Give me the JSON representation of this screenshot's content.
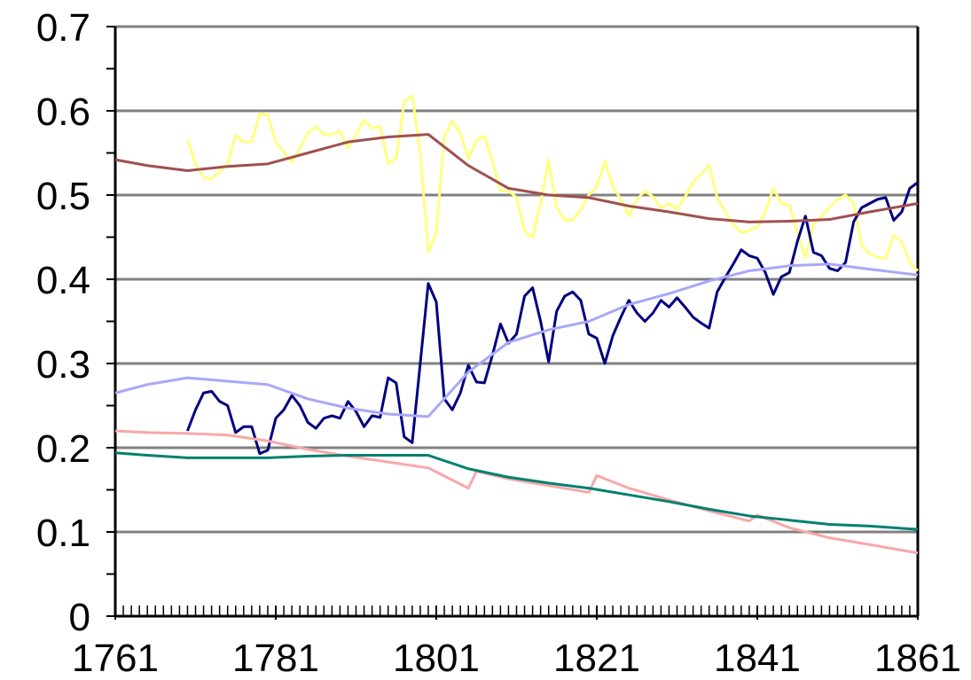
{
  "chart_data": {
    "type": "line",
    "xlim": [
      1761,
      1861
    ],
    "xticks": [
      1761,
      1781,
      1801,
      1821,
      1841,
      1861
    ],
    "ylim": [
      0,
      0.7
    ],
    "yticks": [
      0,
      0.1,
      0.2,
      0.3,
      0.4,
      0.5,
      0.6,
      0.7
    ],
    "grid": true,
    "series": [
      {
        "color": "#ffff80",
        "x": [
          1770,
          1771,
          1772,
          1773,
          1774,
          1775,
          1776,
          1777,
          1778,
          1779,
          1780,
          1781,
          1782,
          1783,
          1784,
          1785,
          1786,
          1787,
          1788,
          1789,
          1790,
          1791,
          1792,
          1793,
          1794,
          1795,
          1796,
          1797,
          1798,
          1799,
          1800,
          1801,
          1802,
          1803,
          1804,
          1805,
          1806,
          1807,
          1808,
          1809,
          1810,
          1811,
          1812,
          1813,
          1814,
          1815,
          1816,
          1817,
          1818,
          1819,
          1820,
          1821,
          1822,
          1823,
          1824,
          1825,
          1826,
          1827,
          1828,
          1829,
          1830,
          1831,
          1832,
          1833,
          1834,
          1835,
          1836,
          1837,
          1838,
          1839,
          1840,
          1841,
          1842,
          1843,
          1844,
          1845,
          1846,
          1847,
          1848,
          1849,
          1850,
          1851,
          1852,
          1853,
          1854,
          1855,
          1856,
          1857,
          1858,
          1859,
          1860,
          1861
        ],
        "values": [
          0.566,
          0.537,
          0.521,
          0.519,
          0.528,
          0.537,
          0.571,
          0.563,
          0.563,
          0.597,
          0.595,
          0.563,
          0.551,
          0.539,
          0.555,
          0.574,
          0.581,
          0.572,
          0.572,
          0.576,
          0.556,
          0.572,
          0.589,
          0.579,
          0.582,
          0.537,
          0.544,
          0.611,
          0.618,
          0.55,
          0.432,
          0.455,
          0.57,
          0.588,
          0.573,
          0.543,
          0.565,
          0.57,
          0.54,
          0.505,
          0.505,
          0.497,
          0.457,
          0.45,
          0.49,
          0.542,
          0.485,
          0.47,
          0.47,
          0.483,
          0.5,
          0.51,
          0.54,
          0.51,
          0.495,
          0.475,
          0.495,
          0.505,
          0.498,
          0.485,
          0.49,
          0.483,
          0.498,
          0.515,
          0.525,
          0.535,
          0.497,
          0.48,
          0.465,
          0.455,
          0.458,
          0.462,
          0.48,
          0.508,
          0.49,
          0.488,
          0.455,
          0.425,
          0.465,
          0.475,
          0.485,
          0.495,
          0.5,
          0.49,
          0.44,
          0.43,
          0.426,
          0.425,
          0.452,
          0.445,
          0.42,
          0.41
        ]
      },
      {
        "color": "#000080",
        "x": [
          1770,
          1771,
          1772,
          1773,
          1774,
          1775,
          1776,
          1777,
          1778,
          1779,
          1780,
          1781,
          1782,
          1783,
          1784,
          1785,
          1786,
          1787,
          1788,
          1789,
          1790,
          1791,
          1792,
          1793,
          1794,
          1795,
          1796,
          1797,
          1798,
          1799,
          1800,
          1801,
          1802,
          1803,
          1804,
          1805,
          1806,
          1807,
          1808,
          1809,
          1810,
          1811,
          1812,
          1813,
          1814,
          1815,
          1816,
          1817,
          1818,
          1819,
          1820,
          1821,
          1822,
          1823,
          1824,
          1825,
          1826,
          1827,
          1828,
          1829,
          1830,
          1831,
          1832,
          1833,
          1834,
          1835,
          1836,
          1837,
          1838,
          1839,
          1840,
          1841,
          1842,
          1843,
          1844,
          1845,
          1846,
          1847,
          1848,
          1849,
          1850,
          1851,
          1852,
          1853,
          1854,
          1855,
          1856,
          1857,
          1858,
          1859,
          1860,
          1861
        ],
        "values": [
          0.22,
          0.245,
          0.265,
          0.267,
          0.255,
          0.25,
          0.218,
          0.225,
          0.225,
          0.193,
          0.197,
          0.235,
          0.245,
          0.262,
          0.25,
          0.23,
          0.223,
          0.235,
          0.238,
          0.235,
          0.255,
          0.243,
          0.225,
          0.238,
          0.236,
          0.283,
          0.277,
          0.213,
          0.206,
          0.3,
          0.395,
          0.373,
          0.258,
          0.245,
          0.265,
          0.298,
          0.278,
          0.277,
          0.31,
          0.347,
          0.324,
          0.335,
          0.38,
          0.39,
          0.35,
          0.302,
          0.362,
          0.38,
          0.385,
          0.375,
          0.335,
          0.33,
          0.3,
          0.333,
          0.355,
          0.375,
          0.36,
          0.35,
          0.36,
          0.375,
          0.367,
          0.378,
          0.367,
          0.355,
          0.348,
          0.342,
          0.385,
          0.402,
          0.418,
          0.435,
          0.428,
          0.425,
          0.408,
          0.382,
          0.403,
          0.408,
          0.445,
          0.475,
          0.432,
          0.428,
          0.413,
          0.41,
          0.42,
          0.468,
          0.485,
          0.49,
          0.495,
          0.497,
          0.47,
          0.48,
          0.508,
          0.515
        ]
      },
      {
        "color": "#a0504f",
        "x": [
          1761,
          1765,
          1770,
          1775,
          1780,
          1785,
          1790,
          1795,
          1800,
          1805,
          1810,
          1815,
          1820,
          1825,
          1830,
          1835,
          1840,
          1845,
          1850,
          1855,
          1861
        ],
        "values": [
          0.542,
          0.535,
          0.529,
          0.534,
          0.537,
          0.55,
          0.563,
          0.569,
          0.572,
          0.535,
          0.508,
          0.5,
          0.497,
          0.487,
          0.48,
          0.472,
          0.468,
          0.469,
          0.471,
          0.48,
          0.49
        ]
      },
      {
        "color": "#a8a8f8",
        "x": [
          1761,
          1765,
          1770,
          1775,
          1780,
          1785,
          1790,
          1795,
          1800,
          1805,
          1810,
          1815,
          1820,
          1825,
          1830,
          1835,
          1840,
          1845,
          1850,
          1855,
          1861
        ],
        "values": [
          0.265,
          0.275,
          0.283,
          0.279,
          0.275,
          0.258,
          0.247,
          0.24,
          0.237,
          0.29,
          0.325,
          0.34,
          0.35,
          0.37,
          0.383,
          0.398,
          0.41,
          0.416,
          0.418,
          0.412,
          0.405
        ]
      },
      {
        "color": "#f8a8a8",
        "x": [
          1761,
          1765,
          1770,
          1775,
          1780,
          1785,
          1790,
          1795,
          1800,
          1805,
          1806,
          1810,
          1815,
          1820,
          1821,
          1825,
          1830,
          1835,
          1840,
          1841,
          1845,
          1850,
          1855,
          1861
        ],
        "values": [
          0.22,
          0.218,
          0.217,
          0.215,
          0.208,
          0.198,
          0.19,
          0.183,
          0.176,
          0.152,
          0.172,
          0.163,
          0.155,
          0.147,
          0.167,
          0.152,
          0.138,
          0.125,
          0.113,
          0.12,
          0.105,
          0.093,
          0.085,
          0.075
        ]
      },
      {
        "color": "#008070",
        "x": [
          1761,
          1765,
          1770,
          1775,
          1780,
          1785,
          1790,
          1795,
          1800,
          1805,
          1810,
          1815,
          1820,
          1825,
          1830,
          1835,
          1840,
          1845,
          1850,
          1855,
          1861
        ],
        "values": [
          0.194,
          0.191,
          0.188,
          0.188,
          0.188,
          0.19,
          0.191,
          0.191,
          0.191,
          0.175,
          0.165,
          0.158,
          0.152,
          0.144,
          0.136,
          0.127,
          0.119,
          0.114,
          0.109,
          0.107,
          0.103
        ]
      }
    ]
  }
}
